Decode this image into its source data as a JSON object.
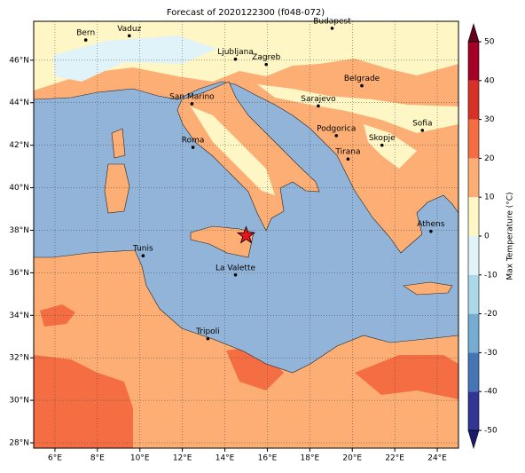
{
  "title": "Forecast of 2020122300 (f048-072)",
  "map": {
    "lonlim": [
      5,
      25
    ],
    "latlim": [
      27.75,
      47.83
    ],
    "grid": true,
    "xticks": [
      {
        "value": 6,
        "label": "6°E"
      },
      {
        "value": 8,
        "label": "8°E"
      },
      {
        "value": 10,
        "label": "10°E"
      },
      {
        "value": 12,
        "label": "12°E"
      },
      {
        "value": 14,
        "label": "14°E"
      },
      {
        "value": 16,
        "label": "16°E"
      },
      {
        "value": 18,
        "label": "18°E"
      },
      {
        "value": 20,
        "label": "20°E"
      },
      {
        "value": 22,
        "label": "22°E"
      },
      {
        "value": 24,
        "label": "24°E"
      }
    ],
    "yticks": [
      {
        "value": 28,
        "label": "28°N"
      },
      {
        "value": 30,
        "label": "30°N"
      },
      {
        "value": 32,
        "label": "32°N"
      },
      {
        "value": 34,
        "label": "34°N"
      },
      {
        "value": 36,
        "label": "36°N"
      },
      {
        "value": 38,
        "label": "38°N"
      },
      {
        "value": 40,
        "label": "40°N"
      },
      {
        "value": 42,
        "label": "42°N"
      },
      {
        "value": 44,
        "label": "44°N"
      },
      {
        "value": 46,
        "label": "46°N"
      }
    ],
    "cities": [
      {
        "name": "Bern",
        "lon": 7.45,
        "lat": 46.95
      },
      {
        "name": "Vaduz",
        "lon": 9.5,
        "lat": 47.15
      },
      {
        "name": "Budapest",
        "lon": 19.05,
        "lat": 47.5
      },
      {
        "name": "Ljubljana",
        "lon": 14.5,
        "lat": 46.05
      },
      {
        "name": "Zagreb",
        "lon": 15.95,
        "lat": 45.8
      },
      {
        "name": "Belgrade",
        "lon": 20.45,
        "lat": 44.8
      },
      {
        "name": "Sarajevo",
        "lon": 18.4,
        "lat": 43.85
      },
      {
        "name": "San Marino",
        "lon": 12.45,
        "lat": 43.95
      },
      {
        "name": "Podgorica",
        "lon": 19.25,
        "lat": 42.45
      },
      {
        "name": "Sofia",
        "lon": 23.3,
        "lat": 42.7
      },
      {
        "name": "Skopje",
        "lon": 21.4,
        "lat": 42.0
      },
      {
        "name": "Roma",
        "lon": 12.5,
        "lat": 41.9
      },
      {
        "name": "Tirana",
        "lon": 19.8,
        "lat": 41.35
      },
      {
        "name": "Athens",
        "lon": 23.7,
        "lat": 37.95
      },
      {
        "name": "Tunis",
        "lon": 10.15,
        "lat": 36.8
      },
      {
        "name": "La Valette",
        "lon": 14.5,
        "lat": 35.9
      },
      {
        "name": "Tripoli",
        "lon": 13.2,
        "lat": 32.9
      }
    ],
    "marker": {
      "lon": 15.0,
      "lat": 37.75,
      "color": "#e8141e"
    }
  },
  "colorbar": {
    "label": "Max Temperature (°C)",
    "levels": [
      -50,
      -40,
      -30,
      -20,
      -10,
      0,
      10,
      20,
      30,
      40,
      50
    ],
    "colors": [
      "#313695",
      "#4575b4",
      "#74add1",
      "#abd9e9",
      "#e0f3f8",
      "#fef6c4",
      "#fdae74",
      "#f46d43",
      "#d73027",
      "#a50026"
    ],
    "extend_colors": [
      "#1a1a6e",
      "#67001f"
    ]
  }
}
